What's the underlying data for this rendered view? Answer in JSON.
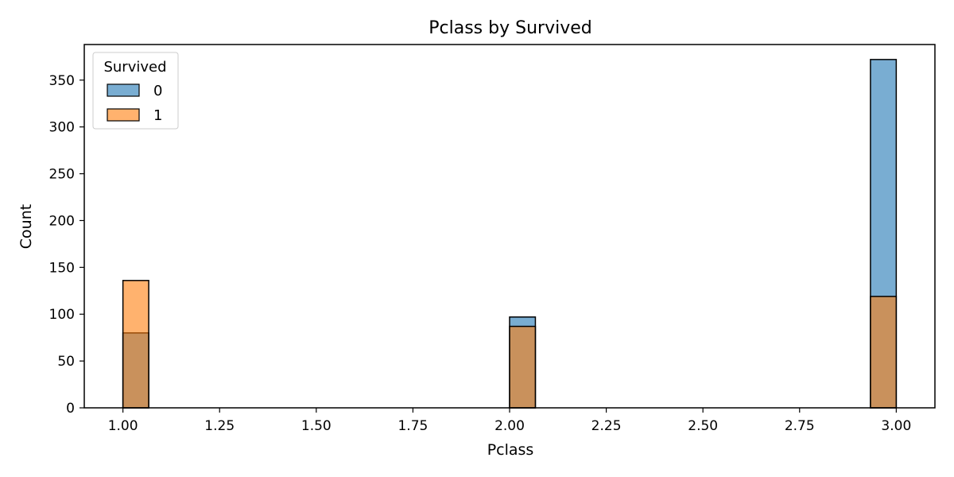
{
  "chart_data": {
    "type": "bar",
    "title": "Pclass by Survived",
    "xlabel": "Pclass",
    "ylabel": "Count",
    "xlim": [
      0.9,
      3.1
    ],
    "ylim": [
      0,
      388
    ],
    "x_ticks": [
      "1.00",
      "1.25",
      "1.50",
      "1.75",
      "2.00",
      "2.25",
      "2.50",
      "2.75",
      "3.00"
    ],
    "y_ticks": [
      "0",
      "50",
      "100",
      "150",
      "200",
      "250",
      "300",
      "350"
    ],
    "bins": [
      {
        "start": 1.0,
        "end": 1.0667
      },
      {
        "start": 2.0,
        "end": 2.0667
      },
      {
        "start": 2.9333,
        "end": 3.0
      }
    ],
    "legend": {
      "title": "Survived",
      "position": "upper-left"
    },
    "series": [
      {
        "name": "0",
        "values": [
          80,
          97,
          372
        ],
        "color": "#1f77b4"
      },
      {
        "name": "1",
        "values": [
          136,
          87,
          119
        ],
        "color": "#ff7f0e"
      }
    ],
    "grid": false
  }
}
